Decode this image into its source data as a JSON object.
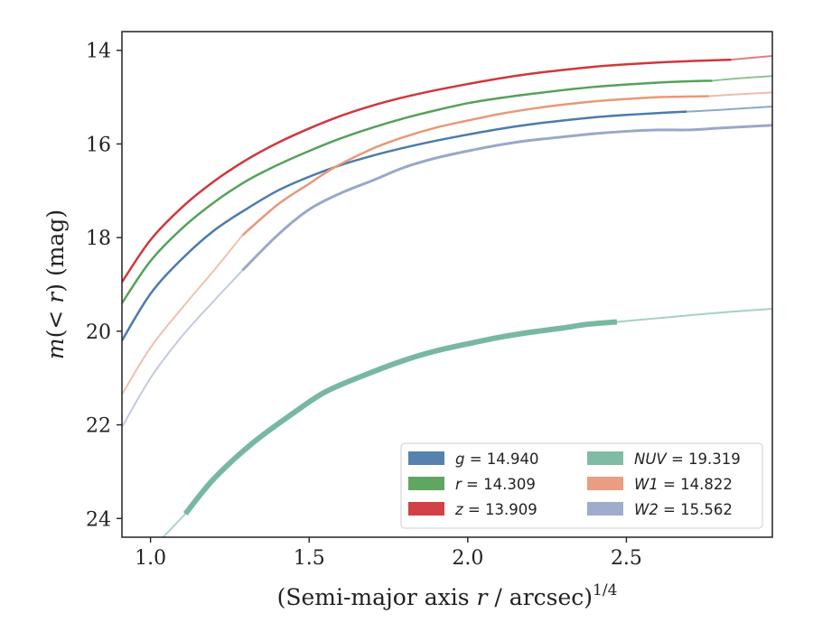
{
  "chart_data": {
    "type": "line",
    "title": "",
    "xlabel": "(Semi-major axis r / arcsec)",
    "xlabel_parts": {
      "open": "(Semi-major axis ",
      "var": "r",
      "rest": " / arcsec)",
      "exp": "1/4"
    },
    "ylabel": "m(< r) (mag)",
    "ylabel_parts": {
      "m": "m",
      "lt": "(< ",
      "r": "r",
      "rest": ") (mag)"
    },
    "xlim": [
      0.91,
      2.96
    ],
    "ylim": [
      24.4,
      13.6
    ],
    "y_inverted": true,
    "xticks": [
      1.0,
      1.5,
      2.0,
      2.5
    ],
    "xtick_labels": [
      "1.0",
      "1.5",
      "2.0",
      "2.5"
    ],
    "yticks": [
      14,
      16,
      18,
      20,
      22,
      24
    ],
    "ytick_labels": [
      "14",
      "16",
      "18",
      "20",
      "22",
      "24"
    ],
    "grid": false,
    "legend_position": "lower-right",
    "legend_columns": 2,
    "series": [
      {
        "name": "g",
        "legend_label": "= 14.940",
        "color": "#4c7bab",
        "band_width": 2.5,
        "measured": [
          [
            0.91,
            20.2
          ],
          [
            1.0,
            19.2
          ],
          [
            1.1,
            18.45
          ],
          [
            1.2,
            17.85
          ],
          [
            1.3,
            17.4
          ],
          [
            1.4,
            17.0
          ],
          [
            1.5,
            16.7
          ],
          [
            1.6,
            16.45
          ],
          [
            1.7,
            16.25
          ],
          [
            1.8,
            16.08
          ],
          [
            1.9,
            15.93
          ],
          [
            2.0,
            15.8
          ],
          [
            2.1,
            15.68
          ],
          [
            2.2,
            15.58
          ],
          [
            2.3,
            15.5
          ],
          [
            2.4,
            15.43
          ],
          [
            2.5,
            15.38
          ],
          [
            2.6,
            15.34
          ],
          [
            2.69,
            15.31
          ]
        ],
        "extrapolated": [
          [
            2.69,
            15.31
          ],
          [
            2.8,
            15.27
          ],
          [
            2.96,
            15.2
          ]
        ],
        "faint": []
      },
      {
        "name": "r",
        "legend_label": "= 14.309",
        "color": "#55a15a",
        "band_width": 2.5,
        "measured": [
          [
            0.91,
            19.4
          ],
          [
            1.0,
            18.5
          ],
          [
            1.1,
            17.8
          ],
          [
            1.2,
            17.25
          ],
          [
            1.3,
            16.8
          ],
          [
            1.4,
            16.45
          ],
          [
            1.5,
            16.15
          ],
          [
            1.6,
            15.88
          ],
          [
            1.7,
            15.65
          ],
          [
            1.8,
            15.45
          ],
          [
            1.9,
            15.28
          ],
          [
            2.0,
            15.13
          ],
          [
            2.1,
            15.02
          ],
          [
            2.2,
            14.93
          ],
          [
            2.3,
            14.85
          ],
          [
            2.4,
            14.78
          ],
          [
            2.5,
            14.73
          ],
          [
            2.6,
            14.69
          ],
          [
            2.7,
            14.66
          ],
          [
            2.77,
            14.65
          ]
        ],
        "extrapolated": [
          [
            2.77,
            14.65
          ],
          [
            2.85,
            14.6
          ],
          [
            2.96,
            14.55
          ]
        ],
        "faint": []
      },
      {
        "name": "z",
        "legend_label": "= 13.909",
        "color": "#d0373b",
        "band_width": 2.5,
        "measured": [
          [
            0.91,
            18.95
          ],
          [
            1.0,
            18.05
          ],
          [
            1.1,
            17.35
          ],
          [
            1.2,
            16.8
          ],
          [
            1.3,
            16.35
          ],
          [
            1.4,
            15.98
          ],
          [
            1.5,
            15.67
          ],
          [
            1.6,
            15.4
          ],
          [
            1.7,
            15.18
          ],
          [
            1.8,
            15.0
          ],
          [
            1.9,
            14.85
          ],
          [
            2.0,
            14.72
          ],
          [
            2.1,
            14.6
          ],
          [
            2.2,
            14.5
          ],
          [
            2.3,
            14.42
          ],
          [
            2.4,
            14.35
          ],
          [
            2.5,
            14.3
          ],
          [
            2.6,
            14.26
          ],
          [
            2.7,
            14.23
          ],
          [
            2.83,
            14.2
          ]
        ],
        "extrapolated": [
          [
            2.83,
            14.2
          ],
          [
            2.96,
            14.12
          ]
        ],
        "faint": []
      },
      {
        "name": "NUV",
        "legend_label": "= 19.319",
        "color": "#78b8a0",
        "band_width": 6,
        "measured": [
          [
            1.11,
            23.9
          ],
          [
            1.2,
            23.15
          ],
          [
            1.32,
            22.4
          ],
          [
            1.45,
            21.75
          ],
          [
            1.55,
            21.3
          ],
          [
            1.67,
            20.95
          ],
          [
            1.8,
            20.62
          ],
          [
            1.9,
            20.42
          ],
          [
            2.0,
            20.27
          ],
          [
            2.1,
            20.13
          ],
          [
            2.2,
            20.02
          ],
          [
            2.3,
            19.93
          ],
          [
            2.38,
            19.85
          ],
          [
            2.47,
            19.8
          ]
        ],
        "extrapolated": [
          [
            2.47,
            19.8
          ],
          [
            2.6,
            19.72
          ],
          [
            2.8,
            19.6
          ],
          [
            2.96,
            19.52
          ]
        ],
        "faint": [
          [
            1.04,
            24.4
          ],
          [
            1.11,
            23.9
          ]
        ]
      },
      {
        "name": "W1",
        "legend_label": "= 14.822",
        "color": "#e8987a",
        "band_width": 2.5,
        "measured": [
          [
            1.29,
            17.95
          ],
          [
            1.4,
            17.3
          ],
          [
            1.5,
            16.85
          ],
          [
            1.58,
            16.5
          ],
          [
            1.7,
            16.1
          ],
          [
            1.8,
            15.85
          ],
          [
            1.9,
            15.65
          ],
          [
            2.0,
            15.5
          ],
          [
            2.1,
            15.36
          ],
          [
            2.2,
            15.25
          ],
          [
            2.3,
            15.16
          ],
          [
            2.4,
            15.09
          ],
          [
            2.5,
            15.04
          ],
          [
            2.6,
            15.0
          ],
          [
            2.76,
            14.98
          ]
        ],
        "extrapolated": [
          [
            2.76,
            14.98
          ],
          [
            2.85,
            14.94
          ],
          [
            2.96,
            14.9
          ]
        ],
        "faint": [
          [
            0.91,
            21.35
          ],
          [
            1.0,
            20.35
          ],
          [
            1.1,
            19.5
          ],
          [
            1.2,
            18.7
          ],
          [
            1.29,
            17.95
          ]
        ]
      },
      {
        "name": "W2",
        "legend_label": "= 15.562",
        "color": "#9aa8c8",
        "band_width": 3,
        "measured": [
          [
            1.29,
            18.7
          ],
          [
            1.4,
            17.95
          ],
          [
            1.5,
            17.4
          ],
          [
            1.6,
            17.05
          ],
          [
            1.7,
            16.78
          ],
          [
            1.8,
            16.5
          ],
          [
            1.9,
            16.3
          ],
          [
            2.0,
            16.15
          ],
          [
            2.1,
            16.02
          ],
          [
            2.2,
            15.92
          ],
          [
            2.3,
            15.85
          ],
          [
            2.4,
            15.78
          ],
          [
            2.5,
            15.73
          ],
          [
            2.6,
            15.7
          ],
          [
            2.7,
            15.7
          ],
          [
            2.8,
            15.66
          ],
          [
            2.96,
            15.6
          ]
        ],
        "extrapolated": [],
        "faint": [
          [
            0.91,
            22.05
          ],
          [
            1.0,
            21.0
          ],
          [
            1.1,
            20.1
          ],
          [
            1.2,
            19.35
          ],
          [
            1.29,
            18.7
          ]
        ]
      }
    ]
  }
}
